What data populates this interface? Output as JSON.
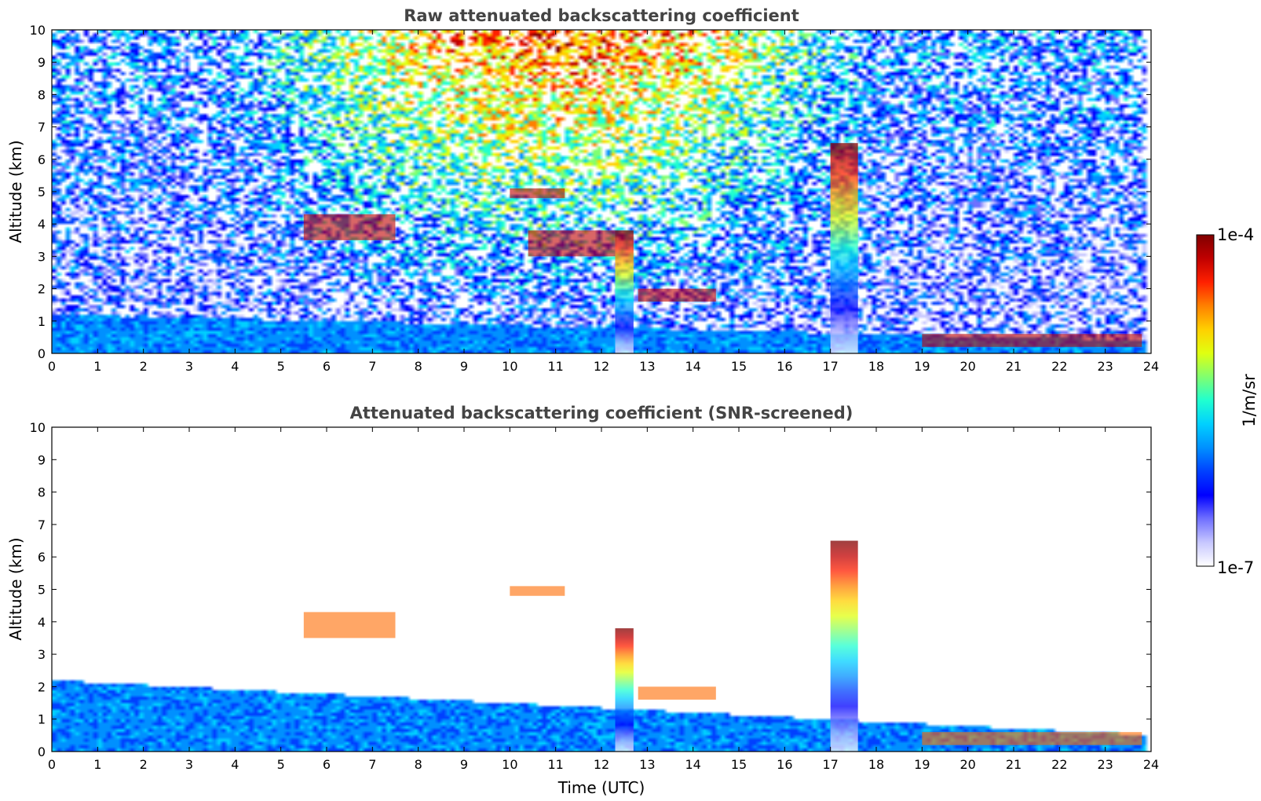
{
  "figure": {
    "colorbar": {
      "label": "1/m/sr",
      "max_label": "1e-4",
      "min_label": "1e-7",
      "min": 1e-07,
      "max": 0.0001,
      "scale": "log",
      "colormap": [
        "#ffffff",
        "#c8c8ff",
        "#7070ff",
        "#0000ff",
        "#0040ff",
        "#0090ff",
        "#00d0ff",
        "#20ffd0",
        "#80ff70",
        "#e0ff10",
        "#ffd000",
        "#ff8000",
        "#ff2000",
        "#c00000",
        "#800000"
      ]
    }
  },
  "chart_data": [
    {
      "type": "heatmap",
      "title": "Raw attenuated backscattering coefficient",
      "xlabel": "",
      "ylabel": "Altitude (km)",
      "xlim": [
        0,
        24
      ],
      "ylim": [
        0,
        10
      ],
      "x_ticks": [
        "0",
        "1",
        "2",
        "3",
        "4",
        "5",
        "6",
        "7",
        "8",
        "9",
        "10",
        "11",
        "12",
        "13",
        "14",
        "15",
        "16",
        "17",
        "18",
        "19",
        "20",
        "21",
        "22",
        "23",
        "24"
      ],
      "y_ticks": [
        "0",
        "1",
        "2",
        "3",
        "4",
        "5",
        "6",
        "7",
        "8",
        "9",
        "10"
      ],
      "grid": false,
      "data_extent_x": [
        0,
        23.85
      ],
      "features": [
        {
          "kind": "boundary_layer",
          "x": [
            0,
            24
          ],
          "top_km": [
            1.2,
            0.4
          ]
        },
        {
          "kind": "cloud_layer",
          "x": [
            5.5,
            7.5
          ],
          "alt_km": [
            3.5,
            4.3
          ]
        },
        {
          "kind": "cloud_layer",
          "x": [
            10,
            11.2
          ],
          "alt_km": [
            4.8,
            5.1
          ]
        },
        {
          "kind": "cloud_layer",
          "x": [
            10.4,
            12.3
          ],
          "alt_km": [
            3.0,
            3.8
          ]
        },
        {
          "kind": "precipitation_streak",
          "x": [
            12.3,
            12.7
          ],
          "alt_km": [
            0,
            3.8
          ]
        },
        {
          "kind": "cloud_layer",
          "x": [
            12.8,
            14.5
          ],
          "alt_km": [
            1.6,
            2.0
          ]
        },
        {
          "kind": "precipitation_streak",
          "x": [
            17.0,
            17.6
          ],
          "alt_km": [
            0,
            6.5
          ]
        },
        {
          "kind": "cloud_layer",
          "x": [
            19.0,
            23.8
          ],
          "alt_km": [
            0.2,
            0.6
          ]
        }
      ]
    },
    {
      "type": "heatmap",
      "title": "Attenuated backscattering coefficient (SNR-screened)",
      "xlabel": "Time (UTC)",
      "ylabel": "Altitude (km)",
      "xlim": [
        0,
        24
      ],
      "ylim": [
        0,
        10
      ],
      "x_ticks": [
        "0",
        "1",
        "2",
        "3",
        "4",
        "5",
        "6",
        "7",
        "8",
        "9",
        "10",
        "11",
        "12",
        "13",
        "14",
        "15",
        "16",
        "17",
        "18",
        "19",
        "20",
        "21",
        "22",
        "23",
        "24"
      ],
      "y_ticks": [
        "0",
        "1",
        "2",
        "3",
        "4",
        "5",
        "6",
        "7",
        "8",
        "9",
        "10"
      ],
      "grid": false,
      "data_extent_x": [
        0,
        23.85
      ],
      "features": [
        {
          "kind": "boundary_layer",
          "x": [
            0,
            24
          ],
          "top_km": [
            2.2,
            0.5
          ]
        },
        {
          "kind": "cloud_layer",
          "x": [
            5.5,
            7.5
          ],
          "alt_km": [
            3.5,
            4.3
          ]
        },
        {
          "kind": "cloud_layer",
          "x": [
            10,
            11.2
          ],
          "alt_km": [
            4.8,
            5.1
          ]
        },
        {
          "kind": "precipitation_streak",
          "x": [
            12.3,
            12.7
          ],
          "alt_km": [
            0,
            3.8
          ]
        },
        {
          "kind": "cloud_layer",
          "x": [
            12.8,
            14.5
          ],
          "alt_km": [
            1.6,
            2.0
          ]
        },
        {
          "kind": "precipitation_streak",
          "x": [
            17.0,
            17.6
          ],
          "alt_km": [
            0,
            6.5
          ]
        },
        {
          "kind": "cloud_layer",
          "x": [
            19.0,
            23.8
          ],
          "alt_km": [
            0.2,
            0.6
          ]
        }
      ]
    }
  ]
}
